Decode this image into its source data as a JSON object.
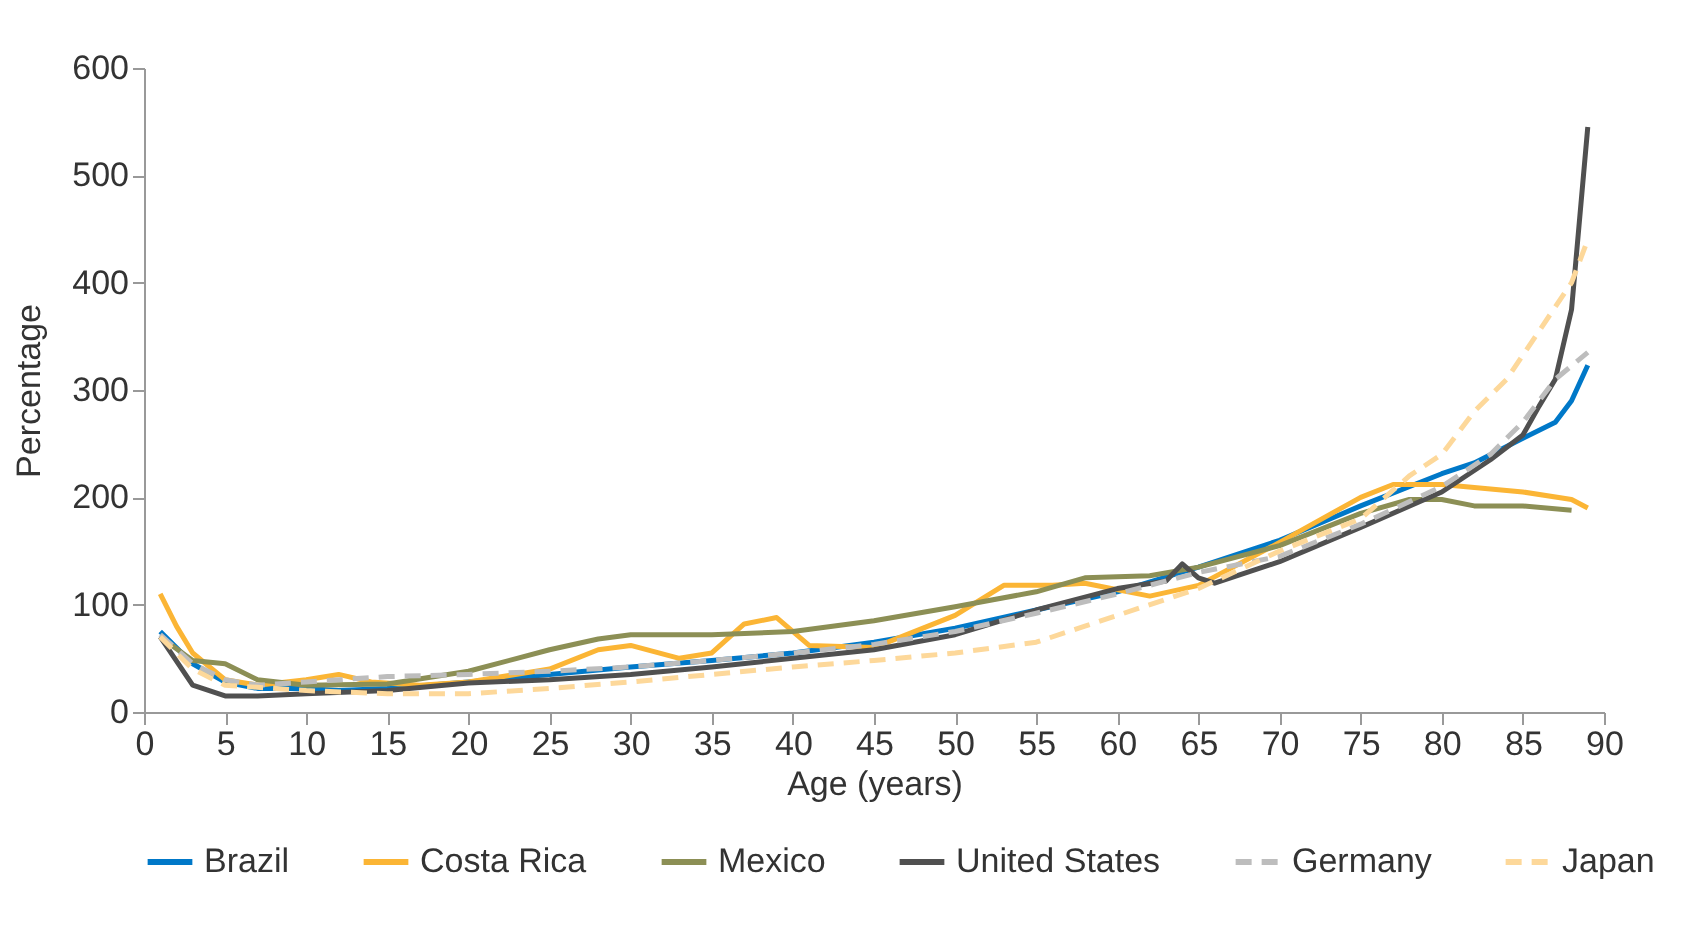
{
  "chart_data": {
    "type": "line",
    "xlabel": "Age (years)",
    "ylabel": "Percentage",
    "xlim": [
      0,
      90
    ],
    "xticks": [
      0,
      5,
      10,
      15,
      20,
      25,
      30,
      35,
      40,
      45,
      50,
      55,
      60,
      65,
      70,
      75,
      80,
      85,
      90
    ],
    "ylim": [
      0,
      600
    ],
    "yticks": [
      0,
      100,
      200,
      300,
      400,
      500,
      600
    ],
    "grid": false,
    "legend": "bottom",
    "marker": "none",
    "series": [
      {
        "name": "Brazil",
        "color": "#0078c8",
        "line_style": "solid",
        "x": [
          1,
          3,
          5,
          7,
          10,
          12,
          15,
          20,
          25,
          30,
          35,
          40,
          45,
          50,
          55,
          60,
          65,
          70,
          75,
          80,
          82,
          85,
          87,
          88,
          89
        ],
        "values": [
          75,
          45,
          28,
          22,
          22,
          20,
          22,
          28,
          35,
          42,
          48,
          55,
          65,
          78,
          95,
          112,
          135,
          160,
          192,
          222,
          232,
          255,
          270,
          290,
          323
        ]
      },
      {
        "name": "Costa Rica",
        "color": "#fbb535",
        "line_style": "solid",
        "x": [
          1,
          2,
          3,
          5,
          7,
          10,
          12,
          14,
          17,
          20,
          25,
          28,
          30,
          33,
          35,
          37,
          39,
          41,
          45,
          50,
          53,
          56,
          58,
          62,
          65,
          70,
          75,
          77,
          80,
          85,
          88,
          89
        ],
        "values": [
          110,
          80,
          55,
          30,
          25,
          30,
          35,
          28,
          25,
          28,
          40,
          58,
          62,
          50,
          55,
          82,
          88,
          62,
          60,
          90,
          118,
          118,
          120,
          108,
          118,
          158,
          200,
          212,
          212,
          205,
          198,
          190
        ]
      },
      {
        "name": "Mexico",
        "color": "#8c8f55",
        "line_style": "solid",
        "x": [
          1,
          3,
          5,
          7,
          10,
          15,
          20,
          23,
          25,
          28,
          30,
          35,
          40,
          45,
          50,
          55,
          58,
          62,
          65,
          70,
          75,
          78,
          80,
          82,
          85,
          88
        ],
        "values": [
          70,
          48,
          45,
          30,
          25,
          26,
          38,
          50,
          58,
          68,
          72,
          72,
          75,
          85,
          98,
          112,
          125,
          127,
          135,
          155,
          185,
          198,
          198,
          192,
          192,
          188
        ]
      },
      {
        "name": "United States",
        "color": "#505050",
        "line_style": "solid",
        "x": [
          1,
          3,
          5,
          7,
          10,
          15,
          20,
          25,
          30,
          35,
          40,
          45,
          50,
          55,
          60,
          63,
          64,
          65,
          66,
          70,
          75,
          80,
          83,
          85,
          86,
          87,
          88,
          89
        ],
        "values": [
          70,
          25,
          15,
          15,
          17,
          20,
          27,
          30,
          35,
          42,
          50,
          58,
          72,
          95,
          115,
          122,
          138,
          125,
          120,
          140,
          172,
          205,
          235,
          258,
          285,
          310,
          375,
          545
        ]
      },
      {
        "name": "Germany",
        "color": "#bdbdbd",
        "line_style": "dashed",
        "x": [
          1,
          3,
          5,
          7,
          10,
          15,
          20,
          25,
          30,
          35,
          40,
          45,
          50,
          55,
          60,
          65,
          70,
          75,
          80,
          83,
          85,
          87,
          89
        ],
        "values": [
          72,
          45,
          30,
          25,
          28,
          33,
          35,
          38,
          42,
          48,
          55,
          63,
          75,
          92,
          110,
          130,
          145,
          175,
          210,
          240,
          270,
          310,
          335
        ]
      },
      {
        "name": "Japan",
        "color": "#fdd89a",
        "line_style": "dashed",
        "x": [
          1,
          3,
          5,
          10,
          15,
          20,
          25,
          30,
          35,
          40,
          45,
          50,
          55,
          58,
          60,
          65,
          70,
          75,
          78,
          80,
          82,
          84,
          86,
          88,
          89
        ],
        "values": [
          70,
          40,
          25,
          20,
          17,
          17,
          22,
          28,
          35,
          42,
          48,
          55,
          65,
          80,
          90,
          115,
          150,
          180,
          220,
          240,
          280,
          310,
          355,
          400,
          440
        ]
      }
    ]
  }
}
